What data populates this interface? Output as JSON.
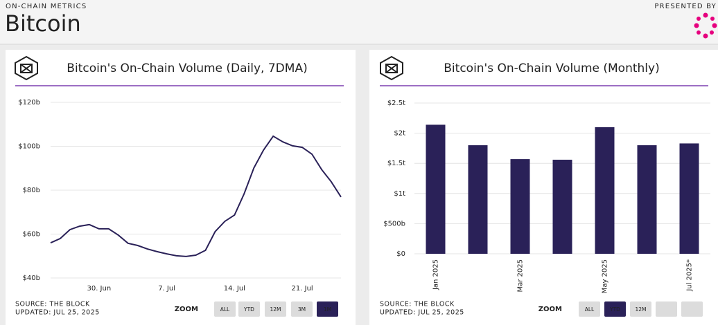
{
  "header": {
    "kicker": "ON-CHAIN METRICS",
    "title": "Bitcoin",
    "presented_by": "PRESENTED BY"
  },
  "chart_data": [
    {
      "type": "line",
      "title": "Bitcoin's On-Chain Volume (Daily, 7DMA)",
      "color": "#2a2158",
      "categories": [
        null,
        null,
        null,
        null,
        null,
        "30. Jun",
        null,
        null,
        null,
        null,
        null,
        null,
        "7. Jul",
        null,
        null,
        null,
        null,
        null,
        null,
        "14. Jul",
        null,
        null,
        null,
        null,
        null,
        null,
        "21. Jul",
        null,
        null,
        null,
        null
      ],
      "values": [
        56,
        58,
        62,
        63.6,
        64.3,
        62.4,
        62.4,
        59.5,
        55.8,
        54.8,
        53.2,
        52,
        51,
        50.1,
        49.8,
        50.4,
        52.6,
        61.1,
        65.8,
        68.7,
        78.4,
        90.1,
        98.3,
        104.6,
        102,
        100.2,
        99.5,
        96.4,
        89.4,
        83.8,
        76.9
      ],
      "ylim": [
        40,
        120
      ],
      "yticks": [
        {
          "value": 40,
          "label": "$40b"
        },
        {
          "value": 60,
          "label": "$60b"
        },
        {
          "value": 80,
          "label": "$80b"
        },
        {
          "value": 100,
          "label": "$100b"
        },
        {
          "value": 120,
          "label": "$120b"
        }
      ],
      "grid": true,
      "source": "SOURCE: THE BLOCK",
      "updated": "UPDATED: JUL 25, 2025",
      "zoom_label": "ZOOM",
      "zoom_buttons": [
        "ALL",
        "YTD",
        "12M",
        "3M",
        "1M"
      ],
      "zoom_active": 4
    },
    {
      "type": "bar",
      "title": "Bitcoin's On-Chain Volume (Monthly)",
      "color": "#2a2158",
      "categories": [
        "Jan 2025",
        null,
        "Mar 2025",
        null,
        "May 2025",
        null,
        "Jul 2025*"
      ],
      "values": [
        2.14,
        1.8,
        1.57,
        1.56,
        2.1,
        1.8,
        1.83
      ],
      "ylim": [
        0,
        2.5
      ],
      "yticks": [
        {
          "value": 0,
          "label": "$0"
        },
        {
          "value": 0.5,
          "label": "$500b"
        },
        {
          "value": 1,
          "label": "$1t"
        },
        {
          "value": 1.5,
          "label": "$1.5t"
        },
        {
          "value": 2,
          "label": "$2t"
        },
        {
          "value": 2.5,
          "label": "$2.5t"
        }
      ],
      "grid": true,
      "source": "SOURCE: THE BLOCK",
      "updated": "UPDATED: JUL 25, 2025",
      "zoom_label": "ZOOM",
      "zoom_buttons": [
        "ALL",
        "YTD",
        "12M",
        null,
        null
      ],
      "zoom_active": 1
    }
  ]
}
